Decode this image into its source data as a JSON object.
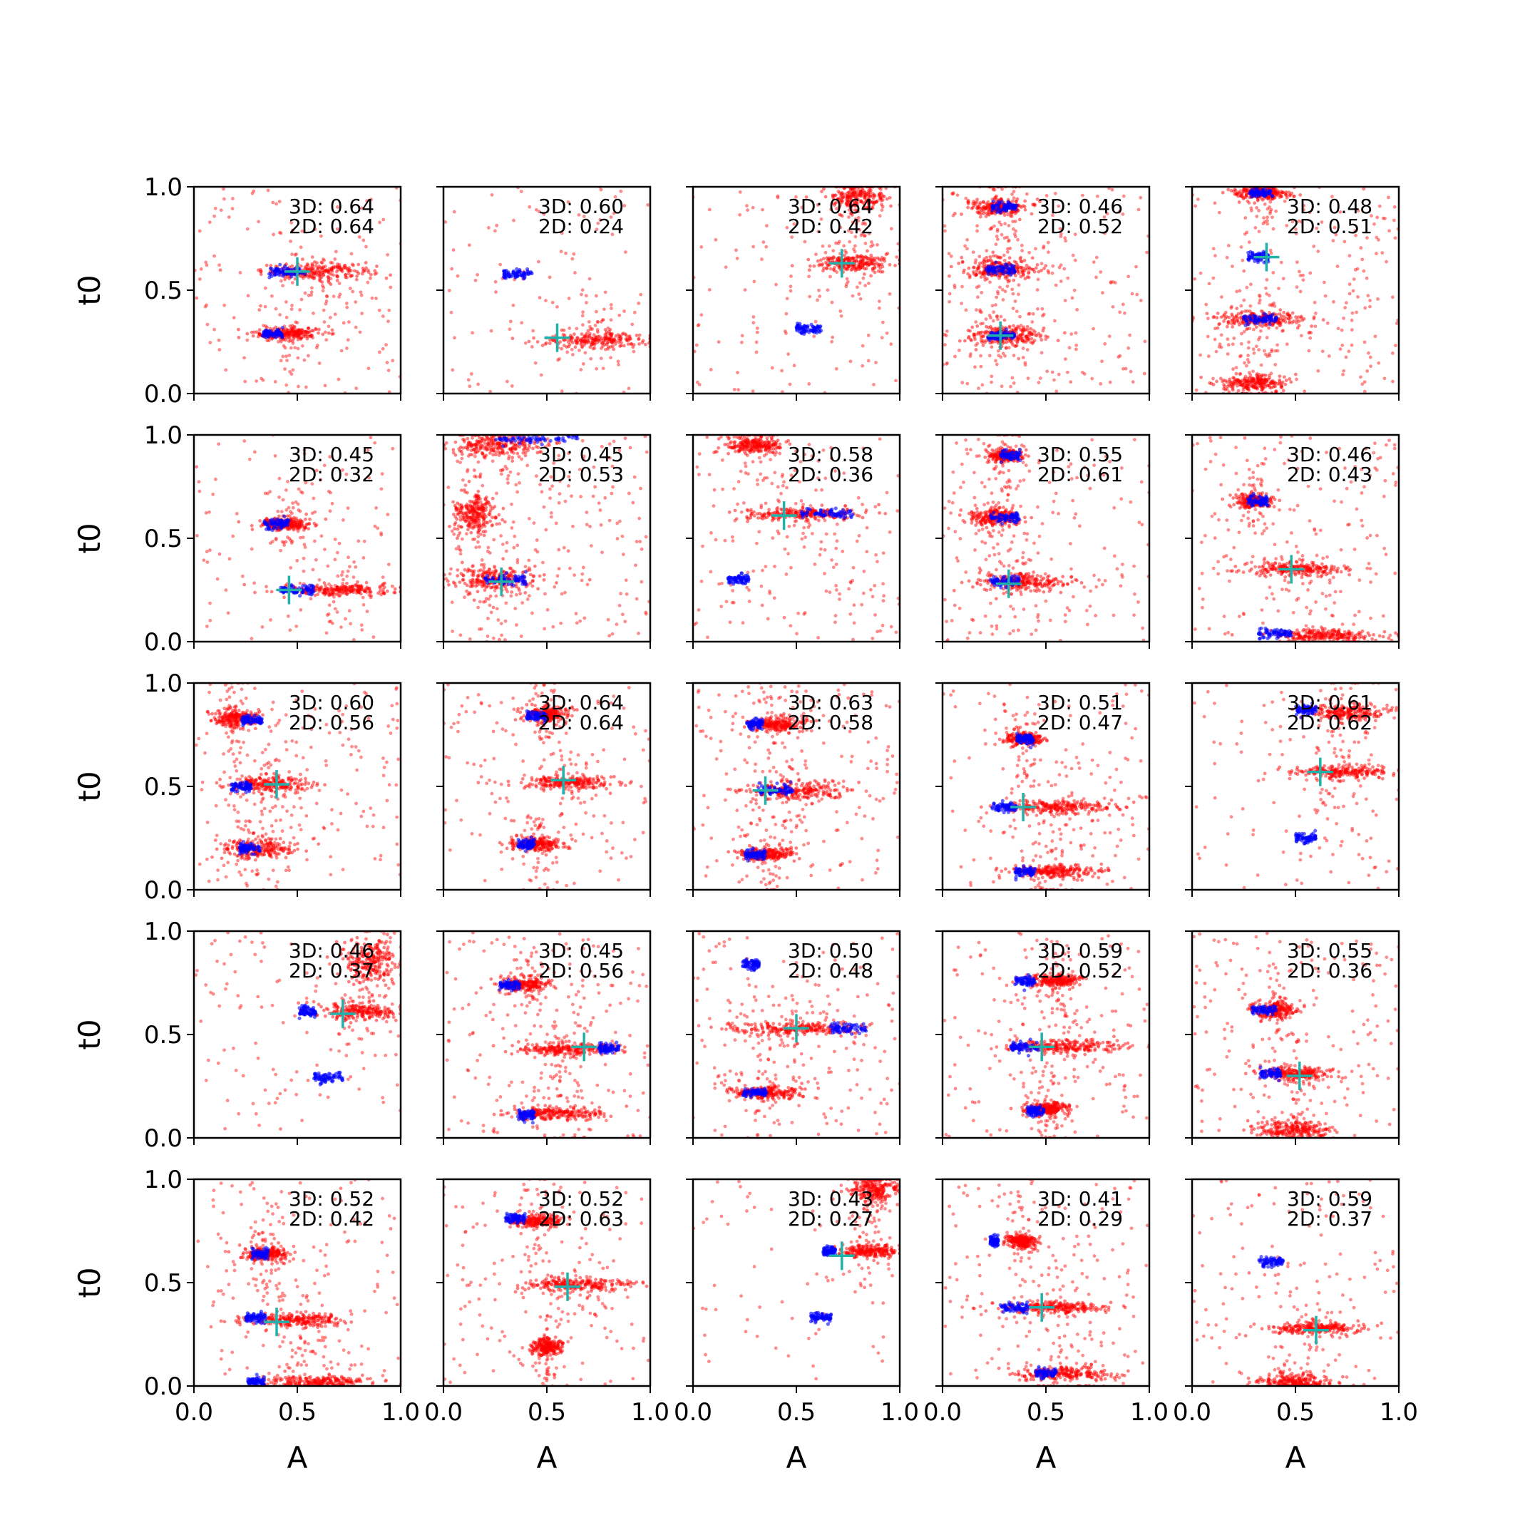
{
  "chart_data": {
    "type": "scatter",
    "layout": "5x5 grid of small-multiple scatter panels",
    "xlabel": "A",
    "ylabel": "t0",
    "xlim": [
      0,
      1
    ],
    "ylim": [
      0,
      1
    ],
    "xticks": [
      "0.0",
      "0.5",
      "1.0"
    ],
    "yticks": [
      "0.0",
      "0.5",
      "1.0"
    ],
    "grid": false,
    "colors": {
      "samples_red": "#ff0000",
      "samples_blue": "#0000ff",
      "marker": "#20b2aa"
    },
    "panels": [
      {
        "row": 0,
        "col": 0,
        "label_3d": "3D: 0.64",
        "label_2d": "2D: 0.64",
        "marker": [
          0.5,
          0.59
        ],
        "clusters": [
          {
            "x": 0.6,
            "y": 0.59,
            "w": 0.3,
            "s": 0.02
          },
          {
            "x": 0.45,
            "y": 0.29,
            "w": 0.18,
            "s": 0.015
          }
        ],
        "blue": [
          {
            "x": 0.45,
            "y": 0.59,
            "w": 0.18
          },
          {
            "x": 0.38,
            "y": 0.29,
            "w": 0.1
          }
        ],
        "bg": 0.5
      },
      {
        "row": 0,
        "col": 1,
        "label_3d": "3D: 0.60",
        "label_2d": "2D: 0.24",
        "marker": [
          0.55,
          0.27
        ],
        "clusters": [
          {
            "x": 0.75,
            "y": 0.26,
            "w": 0.3,
            "s": 0.02
          }
        ],
        "blue": [
          {
            "x": 0.36,
            "y": 0.58,
            "w": 0.14
          }
        ],
        "bg": 0.4
      },
      {
        "row": 0,
        "col": 2,
        "label_3d": "3D: 0.64",
        "label_2d": "2D: 0.42",
        "marker": [
          0.72,
          0.63
        ],
        "clusters": [
          {
            "x": 0.78,
            "y": 0.63,
            "w": 0.22,
            "s": 0.02
          },
          {
            "x": 0.8,
            "y": 0.95,
            "w": 0.16,
            "s": 0.03
          }
        ],
        "blue": [
          {
            "x": 0.56,
            "y": 0.31,
            "w": 0.12
          }
        ],
        "bg": 0.45
      },
      {
        "row": 0,
        "col": 3,
        "label_3d": "3D: 0.46",
        "label_2d": "2D: 0.52",
        "marker": [
          0.28,
          0.28
        ],
        "clusters": [
          {
            "x": 0.3,
            "y": 0.28,
            "w": 0.22,
            "s": 0.025
          },
          {
            "x": 0.28,
            "y": 0.6,
            "w": 0.22,
            "s": 0.025
          },
          {
            "x": 0.27,
            "y": 0.9,
            "w": 0.15,
            "s": 0.02
          }
        ],
        "blue": [
          {
            "x": 0.3,
            "y": 0.9,
            "w": 0.12
          },
          {
            "x": 0.28,
            "y": 0.6,
            "w": 0.14
          },
          {
            "x": 0.28,
            "y": 0.28,
            "w": 0.14
          }
        ],
        "bg": 0.8
      },
      {
        "row": 0,
        "col": 4,
        "label_3d": "3D: 0.48",
        "label_2d": "2D: 0.51",
        "marker": [
          0.36,
          0.66
        ],
        "clusters": [
          {
            "x": 0.33,
            "y": 0.36,
            "w": 0.22,
            "s": 0.02
          },
          {
            "x": 0.3,
            "y": 0.05,
            "w": 0.18,
            "s": 0.02
          },
          {
            "x": 0.33,
            "y": 0.97,
            "w": 0.14,
            "s": 0.015
          }
        ],
        "blue": [
          {
            "x": 0.32,
            "y": 0.66,
            "w": 0.1
          },
          {
            "x": 0.33,
            "y": 0.36,
            "w": 0.16
          },
          {
            "x": 0.33,
            "y": 0.97,
            "w": 0.12
          }
        ],
        "bg": 0.8
      },
      {
        "row": 1,
        "col": 0,
        "label_3d": "3D: 0.45",
        "label_2d": "2D: 0.32",
        "marker": [
          0.46,
          0.25
        ],
        "clusters": [
          {
            "x": 0.72,
            "y": 0.25,
            "w": 0.3,
            "s": 0.015
          },
          {
            "x": 0.45,
            "y": 0.57,
            "w": 0.14,
            "s": 0.015
          }
        ],
        "blue": [
          {
            "x": 0.4,
            "y": 0.57,
            "w": 0.12
          },
          {
            "x": 0.5,
            "y": 0.25,
            "w": 0.16
          }
        ],
        "bg": 0.4
      },
      {
        "row": 1,
        "col": 1,
        "label_3d": "3D: 0.45",
        "label_2d": "2D: 0.53",
        "marker": [
          0.28,
          0.29
        ],
        "clusters": [
          {
            "x": 0.25,
            "y": 0.3,
            "w": 0.25,
            "s": 0.03
          },
          {
            "x": 0.25,
            "y": 0.95,
            "w": 0.25,
            "s": 0.03
          },
          {
            "x": 0.15,
            "y": 0.62,
            "w": 0.12,
            "s": 0.05
          }
        ],
        "blue": [
          {
            "x": 0.3,
            "y": 0.3,
            "w": 0.2
          },
          {
            "x": 0.45,
            "y": 0.98,
            "w": 0.4
          }
        ],
        "bg": 0.85
      },
      {
        "row": 1,
        "col": 2,
        "label_3d": "3D: 0.58",
        "label_2d": "2D: 0.36",
        "marker": [
          0.44,
          0.61
        ],
        "clusters": [
          {
            "x": 0.5,
            "y": 0.62,
            "w": 0.3,
            "s": 0.015
          },
          {
            "x": 0.3,
            "y": 0.95,
            "w": 0.15,
            "s": 0.02
          }
        ],
        "blue": [
          {
            "x": 0.65,
            "y": 0.62,
            "w": 0.25
          },
          {
            "x": 0.22,
            "y": 0.3,
            "w": 0.1
          }
        ],
        "bg": 0.65
      },
      {
        "row": 1,
        "col": 3,
        "label_3d": "3D: 0.55",
        "label_2d": "2D: 0.61",
        "marker": [
          0.32,
          0.28
        ],
        "clusters": [
          {
            "x": 0.4,
            "y": 0.29,
            "w": 0.25,
            "s": 0.02
          },
          {
            "x": 0.25,
            "y": 0.6,
            "w": 0.15,
            "s": 0.02
          },
          {
            "x": 0.3,
            "y": 0.9,
            "w": 0.1,
            "s": 0.015
          }
        ],
        "blue": [
          {
            "x": 0.3,
            "y": 0.6,
            "w": 0.14
          },
          {
            "x": 0.3,
            "y": 0.29,
            "w": 0.14
          },
          {
            "x": 0.33,
            "y": 0.9,
            "w": 0.1
          }
        ],
        "bg": 0.65
      },
      {
        "row": 1,
        "col": 4,
        "label_3d": "3D: 0.46",
        "label_2d": "2D: 0.43",
        "marker": [
          0.48,
          0.35
        ],
        "clusters": [
          {
            "x": 0.5,
            "y": 0.35,
            "w": 0.28,
            "s": 0.015
          },
          {
            "x": 0.65,
            "y": 0.03,
            "w": 0.3,
            "s": 0.015
          },
          {
            "x": 0.3,
            "y": 0.68,
            "w": 0.1,
            "s": 0.015
          }
        ],
        "blue": [
          {
            "x": 0.32,
            "y": 0.68,
            "w": 0.1
          },
          {
            "x": 0.4,
            "y": 0.04,
            "w": 0.16
          }
        ],
        "bg": 0.6
      },
      {
        "row": 2,
        "col": 0,
        "label_3d": "3D: 0.60",
        "label_2d": "2D: 0.56",
        "marker": [
          0.4,
          0.51
        ],
        "clusters": [
          {
            "x": 0.35,
            "y": 0.51,
            "w": 0.22,
            "s": 0.02
          },
          {
            "x": 0.3,
            "y": 0.2,
            "w": 0.2,
            "s": 0.02
          },
          {
            "x": 0.2,
            "y": 0.83,
            "w": 0.12,
            "s": 0.02
          }
        ],
        "blue": [
          {
            "x": 0.23,
            "y": 0.5,
            "w": 0.1
          },
          {
            "x": 0.27,
            "y": 0.2,
            "w": 0.1
          },
          {
            "x": 0.28,
            "y": 0.82,
            "w": 0.1
          }
        ],
        "bg": 0.7
      },
      {
        "row": 2,
        "col": 1,
        "label_3d": "3D: 0.64",
        "label_2d": "2D: 0.64",
        "marker": [
          0.58,
          0.53
        ],
        "clusters": [
          {
            "x": 0.6,
            "y": 0.52,
            "w": 0.25,
            "s": 0.015
          },
          {
            "x": 0.5,
            "y": 0.85,
            "w": 0.12,
            "s": 0.02
          },
          {
            "x": 0.45,
            "y": 0.22,
            "w": 0.14,
            "s": 0.015
          }
        ],
        "blue": [
          {
            "x": 0.45,
            "y": 0.84,
            "w": 0.1
          },
          {
            "x": 0.4,
            "y": 0.22,
            "w": 0.08
          }
        ],
        "bg": 0.55
      },
      {
        "row": 2,
        "col": 2,
        "label_3d": "3D: 0.63",
        "label_2d": "2D: 0.58",
        "marker": [
          0.35,
          0.48
        ],
        "clusters": [
          {
            "x": 0.5,
            "y": 0.48,
            "w": 0.28,
            "s": 0.02
          },
          {
            "x": 0.35,
            "y": 0.17,
            "w": 0.15,
            "s": 0.015
          },
          {
            "x": 0.4,
            "y": 0.8,
            "w": 0.14,
            "s": 0.015
          }
        ],
        "blue": [
          {
            "x": 0.4,
            "y": 0.48,
            "w": 0.18
          },
          {
            "x": 0.3,
            "y": 0.17,
            "w": 0.1
          },
          {
            "x": 0.3,
            "y": 0.8,
            "w": 0.08
          }
        ],
        "bg": 0.7
      },
      {
        "row": 2,
        "col": 3,
        "label_3d": "3D: 0.51",
        "label_2d": "2D: 0.47",
        "marker": [
          0.39,
          0.4
        ],
        "clusters": [
          {
            "x": 0.55,
            "y": 0.4,
            "w": 0.28,
            "s": 0.015
          },
          {
            "x": 0.55,
            "y": 0.09,
            "w": 0.25,
            "s": 0.015
          },
          {
            "x": 0.4,
            "y": 0.73,
            "w": 0.1,
            "s": 0.015
          }
        ],
        "blue": [
          {
            "x": 0.3,
            "y": 0.4,
            "w": 0.12
          },
          {
            "x": 0.4,
            "y": 0.73,
            "w": 0.08
          },
          {
            "x": 0.4,
            "y": 0.09,
            "w": 0.1
          }
        ],
        "bg": 0.55
      },
      {
        "row": 2,
        "col": 4,
        "label_3d": "3D: 0.61",
        "label_2d": "2D: 0.62",
        "marker": [
          0.62,
          0.57
        ],
        "clusters": [
          {
            "x": 0.72,
            "y": 0.57,
            "w": 0.25,
            "s": 0.015
          },
          {
            "x": 0.75,
            "y": 0.86,
            "w": 0.2,
            "s": 0.02
          }
        ],
        "blue": [
          {
            "x": 0.55,
            "y": 0.25,
            "w": 0.1
          },
          {
            "x": 0.55,
            "y": 0.87,
            "w": 0.1
          }
        ],
        "bg": 0.4
      },
      {
        "row": 3,
        "col": 0,
        "label_3d": "3D: 0.46",
        "label_2d": "2D: 0.37",
        "marker": [
          0.72,
          0.6
        ],
        "clusters": [
          {
            "x": 0.8,
            "y": 0.61,
            "w": 0.22,
            "s": 0.02
          },
          {
            "x": 0.85,
            "y": 0.85,
            "w": 0.15,
            "s": 0.05
          }
        ],
        "blue": [
          {
            "x": 0.65,
            "y": 0.29,
            "w": 0.14
          },
          {
            "x": 0.55,
            "y": 0.61,
            "w": 0.08
          }
        ],
        "bg": 0.4
      },
      {
        "row": 3,
        "col": 1,
        "label_3d": "3D: 0.45",
        "label_2d": "2D: 0.56",
        "marker": [
          0.68,
          0.44
        ],
        "clusters": [
          {
            "x": 0.6,
            "y": 0.43,
            "w": 0.28,
            "s": 0.015
          },
          {
            "x": 0.55,
            "y": 0.12,
            "w": 0.25,
            "s": 0.015
          },
          {
            "x": 0.4,
            "y": 0.74,
            "w": 0.14,
            "s": 0.015
          }
        ],
        "blue": [
          {
            "x": 0.32,
            "y": 0.74,
            "w": 0.1
          },
          {
            "x": 0.8,
            "y": 0.43,
            "w": 0.1
          },
          {
            "x": 0.4,
            "y": 0.11,
            "w": 0.08
          }
        ],
        "bg": 0.7
      },
      {
        "row": 3,
        "col": 2,
        "label_3d": "3D: 0.50",
        "label_2d": "2D: 0.48",
        "marker": [
          0.5,
          0.53
        ],
        "clusters": [
          {
            "x": 0.5,
            "y": 0.53,
            "w": 0.35,
            "s": 0.015
          },
          {
            "x": 0.35,
            "y": 0.22,
            "w": 0.2,
            "s": 0.015
          }
        ],
        "blue": [
          {
            "x": 0.75,
            "y": 0.53,
            "w": 0.18
          },
          {
            "x": 0.3,
            "y": 0.22,
            "w": 0.12
          },
          {
            "x": 0.28,
            "y": 0.84,
            "w": 0.08
          }
        ],
        "bg": 0.7
      },
      {
        "row": 3,
        "col": 3,
        "label_3d": "3D: 0.59",
        "label_2d": "2D: 0.52",
        "marker": [
          0.48,
          0.44
        ],
        "clusters": [
          {
            "x": 0.6,
            "y": 0.44,
            "w": 0.3,
            "s": 0.015
          },
          {
            "x": 0.55,
            "y": 0.76,
            "w": 0.14,
            "s": 0.015
          },
          {
            "x": 0.5,
            "y": 0.14,
            "w": 0.12,
            "s": 0.015
          }
        ],
        "blue": [
          {
            "x": 0.4,
            "y": 0.44,
            "w": 0.14
          },
          {
            "x": 0.4,
            "y": 0.76,
            "w": 0.1
          },
          {
            "x": 0.45,
            "y": 0.13,
            "w": 0.08
          }
        ],
        "bg": 0.6
      },
      {
        "row": 3,
        "col": 4,
        "label_3d": "3D: 0.55",
        "label_2d": "2D: 0.36",
        "marker": [
          0.52,
          0.3
        ],
        "clusters": [
          {
            "x": 0.5,
            "y": 0.31,
            "w": 0.18,
            "s": 0.015
          },
          {
            "x": 0.4,
            "y": 0.62,
            "w": 0.12,
            "s": 0.02
          },
          {
            "x": 0.5,
            "y": 0.04,
            "w": 0.2,
            "s": 0.02
          }
        ],
        "blue": [
          {
            "x": 0.35,
            "y": 0.62,
            "w": 0.12
          },
          {
            "x": 0.38,
            "y": 0.31,
            "w": 0.1
          }
        ],
        "bg": 0.65
      },
      {
        "row": 4,
        "col": 0,
        "label_3d": "3D: 0.52",
        "label_2d": "2D: 0.42",
        "marker": [
          0.4,
          0.31
        ],
        "clusters": [
          {
            "x": 0.5,
            "y": 0.32,
            "w": 0.28,
            "s": 0.015
          },
          {
            "x": 0.6,
            "y": 0.02,
            "w": 0.3,
            "s": 0.015
          },
          {
            "x": 0.35,
            "y": 0.64,
            "w": 0.12,
            "s": 0.015
          }
        ],
        "blue": [
          {
            "x": 0.3,
            "y": 0.33,
            "w": 0.1
          },
          {
            "x": 0.32,
            "y": 0.64,
            "w": 0.08
          },
          {
            "x": 0.3,
            "y": 0.02,
            "w": 0.08
          }
        ],
        "bg": 0.6
      },
      {
        "row": 4,
        "col": 1,
        "label_3d": "3D: 0.52",
        "label_2d": "2D: 0.63",
        "marker": [
          0.6,
          0.48
        ],
        "clusters": [
          {
            "x": 0.65,
            "y": 0.49,
            "w": 0.28,
            "s": 0.015
          },
          {
            "x": 0.45,
            "y": 0.8,
            "w": 0.14,
            "s": 0.015
          },
          {
            "x": 0.5,
            "y": 0.19,
            "w": 0.08,
            "s": 0.02
          }
        ],
        "blue": [
          {
            "x": 0.35,
            "y": 0.81,
            "w": 0.1
          }
        ],
        "bg": 0.55
      },
      {
        "row": 4,
        "col": 2,
        "label_3d": "3D: 0.43",
        "label_2d": "2D: 0.27",
        "marker": [
          0.72,
          0.63
        ],
        "clusters": [
          {
            "x": 0.85,
            "y": 0.65,
            "w": 0.15,
            "s": 0.015
          },
          {
            "x": 0.88,
            "y": 0.95,
            "w": 0.12,
            "s": 0.03
          }
        ],
        "blue": [
          {
            "x": 0.62,
            "y": 0.33,
            "w": 0.1
          },
          {
            "x": 0.66,
            "y": 0.65,
            "w": 0.06
          }
        ],
        "bg": 0.25
      },
      {
        "row": 4,
        "col": 3,
        "label_3d": "3D: 0.41",
        "label_2d": "2D: 0.29",
        "marker": [
          0.48,
          0.38
        ],
        "clusters": [
          {
            "x": 0.55,
            "y": 0.38,
            "w": 0.28,
            "s": 0.015
          },
          {
            "x": 0.6,
            "y": 0.06,
            "w": 0.28,
            "s": 0.015
          },
          {
            "x": 0.38,
            "y": 0.7,
            "w": 0.08,
            "s": 0.015
          }
        ],
        "blue": [
          {
            "x": 0.35,
            "y": 0.38,
            "w": 0.14
          },
          {
            "x": 0.25,
            "y": 0.7,
            "w": 0.04
          },
          {
            "x": 0.5,
            "y": 0.06,
            "w": 0.1
          }
        ],
        "bg": 0.55
      },
      {
        "row": 4,
        "col": 4,
        "label_3d": "3D: 0.59",
        "label_2d": "2D: 0.37",
        "marker": [
          0.6,
          0.27
        ],
        "clusters": [
          {
            "x": 0.6,
            "y": 0.28,
            "w": 0.25,
            "s": 0.015
          },
          {
            "x": 0.5,
            "y": 0.02,
            "w": 0.2,
            "s": 0.02
          }
        ],
        "blue": [
          {
            "x": 0.38,
            "y": 0.6,
            "w": 0.12
          }
        ],
        "bg": 0.5
      }
    ]
  }
}
